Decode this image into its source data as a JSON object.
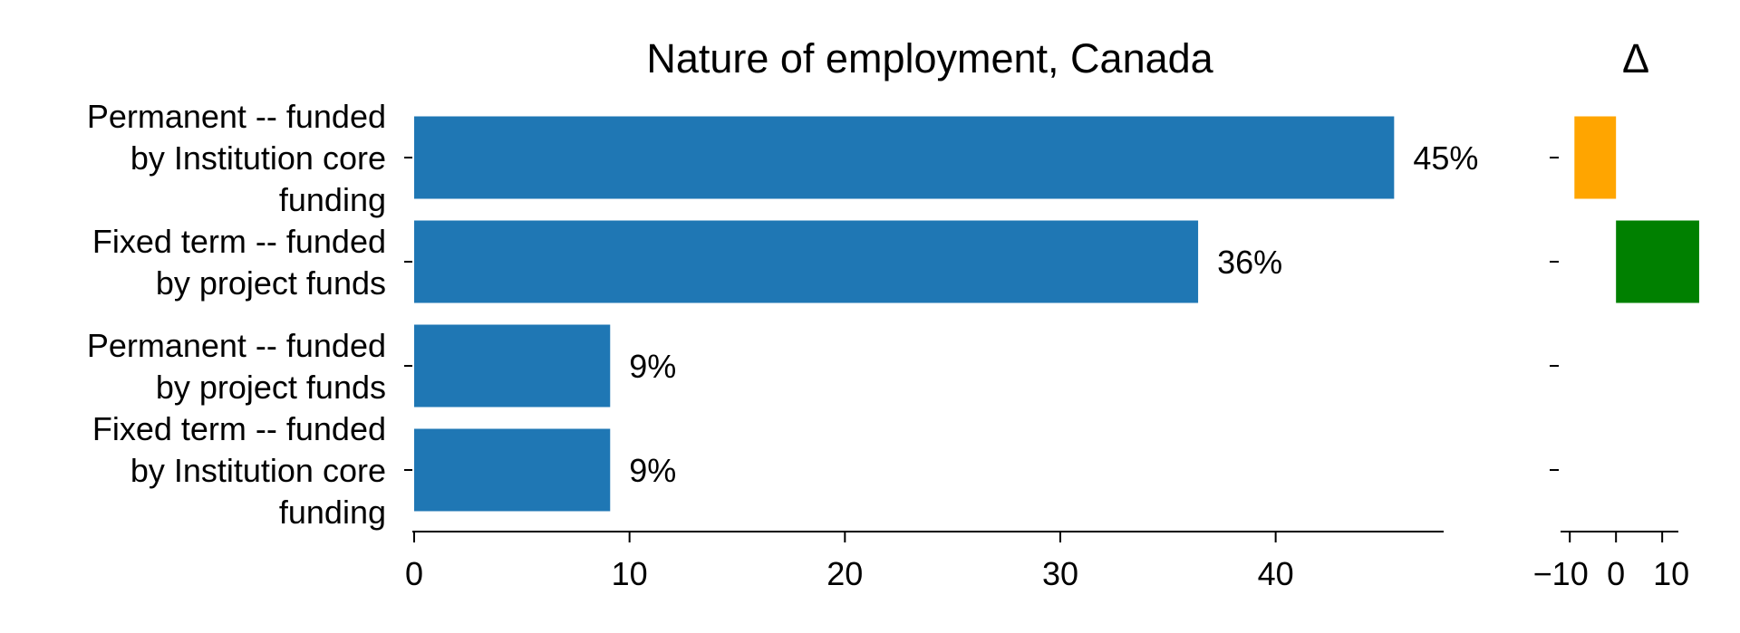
{
  "chart_data": [
    {
      "type": "bar",
      "orientation": "horizontal",
      "title": "Nature of employment, Canada",
      "categories": [
        "Permanent -- funded by Institution core funding",
        "Fixed term -- funded by project funds",
        "Permanent -- funded by project funds",
        "Fixed term -- funded by Institution core funding"
      ],
      "category_lines": [
        [
          "Permanent -- funded",
          "by Institution core",
          "funding"
        ],
        [
          "Fixed term -- funded",
          "by project funds"
        ],
        [
          "Permanent -- funded",
          "by project funds"
        ],
        [
          "Fixed term -- funded",
          "by Institution core",
          "funding"
        ]
      ],
      "values": [
        45.5,
        36.4,
        9.1,
        9.1
      ],
      "data_labels": [
        "45%",
        "36%",
        "9%",
        "9%"
      ],
      "xlim": [
        0,
        47.8
      ],
      "xticks": [
        0,
        10,
        20,
        30,
        40
      ],
      "xtick_labels": [
        "0",
        "10",
        "20",
        "30",
        "40"
      ],
      "bar_color": "#1f77b4",
      "grid": false
    },
    {
      "type": "bar",
      "orientation": "horizontal",
      "title": "Δ",
      "categories": [
        "Permanent -- funded by Institution core funding",
        "Fixed term -- funded by project funds",
        "Permanent -- funded by project funds",
        "Fixed term -- funded by Institution core funding"
      ],
      "values": [
        -9,
        18,
        0,
        0
      ],
      "colors": [
        "#ffa500",
        "#008000",
        "#ffa500",
        "#ffa500"
      ],
      "xlim": [
        -12,
        13.5
      ],
      "xticks": [
        -10,
        0,
        10
      ],
      "xtick_labels": [
        "−10",
        "0",
        "10"
      ],
      "grid": false
    }
  ]
}
